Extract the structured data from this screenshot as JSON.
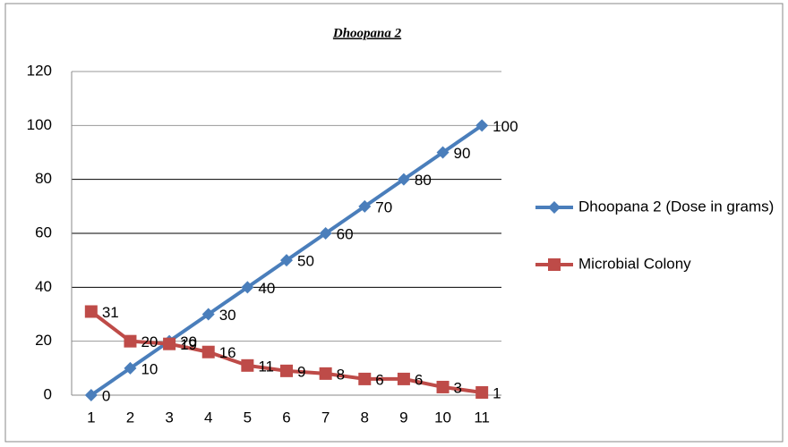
{
  "chart_data": {
    "type": "line",
    "title": "Dhoopana 2",
    "categories": [
      "1",
      "2",
      "3",
      "4",
      "5",
      "6",
      "7",
      "8",
      "9",
      "10",
      "11"
    ],
    "series": [
      {
        "name": "Dhoopana 2 (Dose in grams)",
        "color": "#4a7ebb",
        "marker": "diamond",
        "values": [
          0,
          10,
          20,
          30,
          40,
          50,
          60,
          70,
          80,
          90,
          100
        ]
      },
      {
        "name": "Microbial Colony",
        "color": "#be4b48",
        "marker": "square",
        "values": [
          31,
          20,
          19,
          16,
          11,
          9,
          8,
          6,
          6,
          3,
          1
        ]
      }
    ],
    "ylim": [
      0,
      120
    ],
    "yticks": [
      0,
      20,
      40,
      60,
      80,
      100,
      120
    ],
    "grid": true,
    "legend": "right"
  }
}
